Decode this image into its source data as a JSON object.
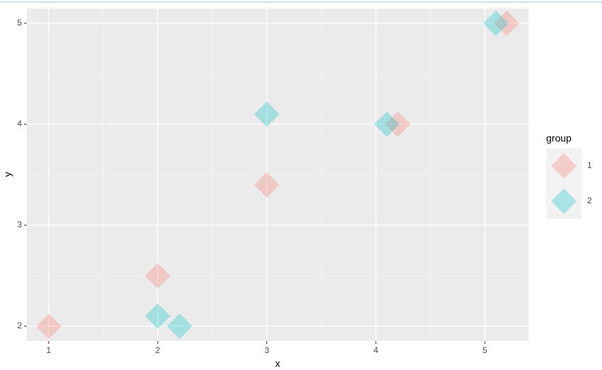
{
  "chart_data": {
    "type": "scatter",
    "xlabel": "x",
    "ylabel": "y",
    "legend_title": "group",
    "legend_position": "right",
    "grid": true,
    "xlim": [
      0.8,
      5.4
    ],
    "xticks": [
      1,
      2,
      3,
      4,
      5
    ],
    "ylim": [
      1.853,
      5.147
    ],
    "yticks": [
      2,
      3,
      4,
      5
    ],
    "series": [
      {
        "name": "1",
        "color": "#F8766D",
        "x": [
          1,
          2,
          3,
          4.2,
          5.2
        ],
        "values": [
          2,
          2.5,
          3.4,
          4,
          5
        ]
      },
      {
        "name": "2",
        "color": "#00BFC4",
        "x": [
          2,
          2.2,
          3,
          4.1,
          5.1
        ],
        "values": [
          2.1,
          2,
          4.1,
          4,
          5
        ]
      }
    ]
  }
}
